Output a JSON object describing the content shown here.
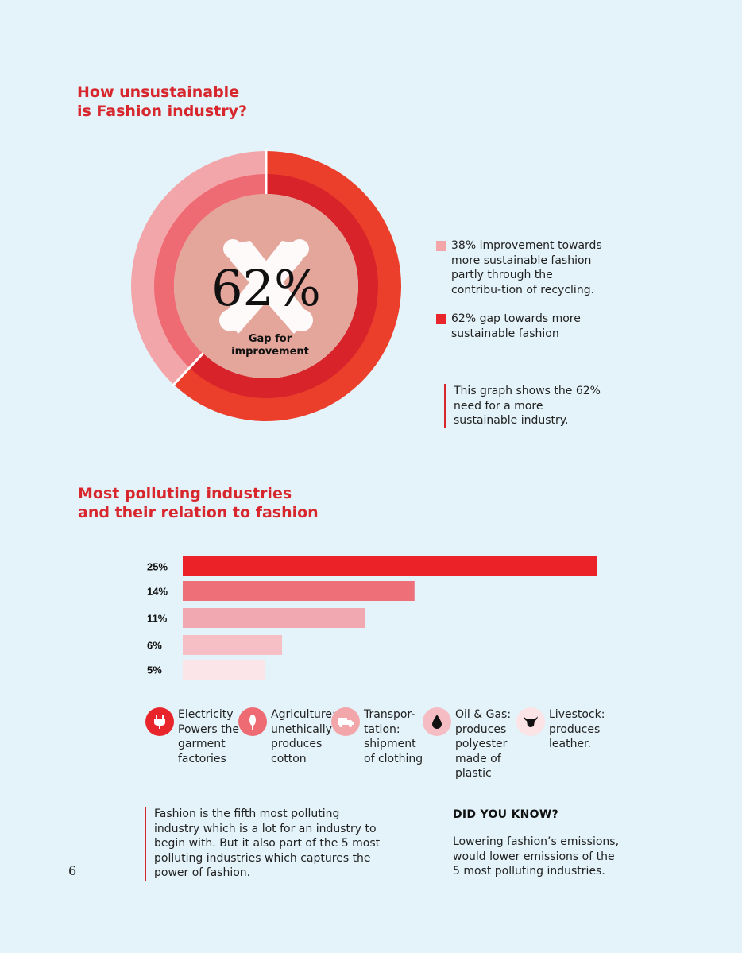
{
  "section1": {
    "title_line1": "How unsustainable",
    "title_line2": "is Fashion industry?"
  },
  "donut": {
    "center_value": "62%",
    "center_label_line1": "Gap for",
    "center_label_line2": "improvement",
    "chart_data": {
      "type": "pie",
      "values": [
        38,
        62
      ],
      "labels": [
        "38% improvement towards more sustainable fashion partly through the contribution of recycling.",
        "62% gap towards more sustainable fashion"
      ],
      "colors": [
        "#f3a6aa",
        "#ec3f2b"
      ],
      "inner_colors": [
        "#ef6b73",
        "#d8232b"
      ]
    }
  },
  "legend": [
    {
      "text": "38% improvement towards more sustainable fashion partly through the contribu-tion of recycling.",
      "color": "#f3a6aa"
    },
    {
      "text": "62% gap towards more sustainable fashion",
      "color": "#e8252b"
    }
  ],
  "note1": "This graph shows the 62% need for a more sustainable industry.",
  "section2": {
    "title_line1": "Most polluting industries",
    "title_line2": "and their relation to fashion"
  },
  "chart_data": {
    "type": "bar",
    "orientation": "horizontal",
    "categories": [
      "25%",
      "14%",
      "11%",
      "6%",
      "5%"
    ],
    "values": [
      25,
      14,
      11,
      6,
      5
    ],
    "colors": [
      "#ec2229",
      "#ef6f79",
      "#f2a8b0",
      "#f6bec5",
      "#fbe5e8"
    ],
    "xlim": [
      0,
      25
    ]
  },
  "categories_legend": [
    {
      "icon": "plug-icon",
      "label": "Electricity Powers the garment factories",
      "color": "#e8252b"
    },
    {
      "icon": "cotton-icon",
      "label": "Agriculture: unethically produces cotton",
      "color": "#ef6b73"
    },
    {
      "icon": "truck-icon",
      "label": "Transpor-tation: shipment of clothing",
      "color": "#f3a6aa"
    },
    {
      "icon": "oil-drop-icon",
      "label": "Oil & Gas: produces polyester made of plastic",
      "color": "#f6bcc3"
    },
    {
      "icon": "cow-icon",
      "label": "Livestock: produces leather.",
      "color": "#fbe3e6"
    }
  ],
  "note2": "Fashion is the fifth most polluting industry which is a lot for an industry to begin with. But it also part of the 5 most polluting industries which captures the power of fashion.",
  "did_you_know": {
    "title": "DID YOU KNOW?",
    "text": "Lowering fashion’s emissions, would lower emissions of the 5 most polluting industries."
  },
  "page_number": "6"
}
